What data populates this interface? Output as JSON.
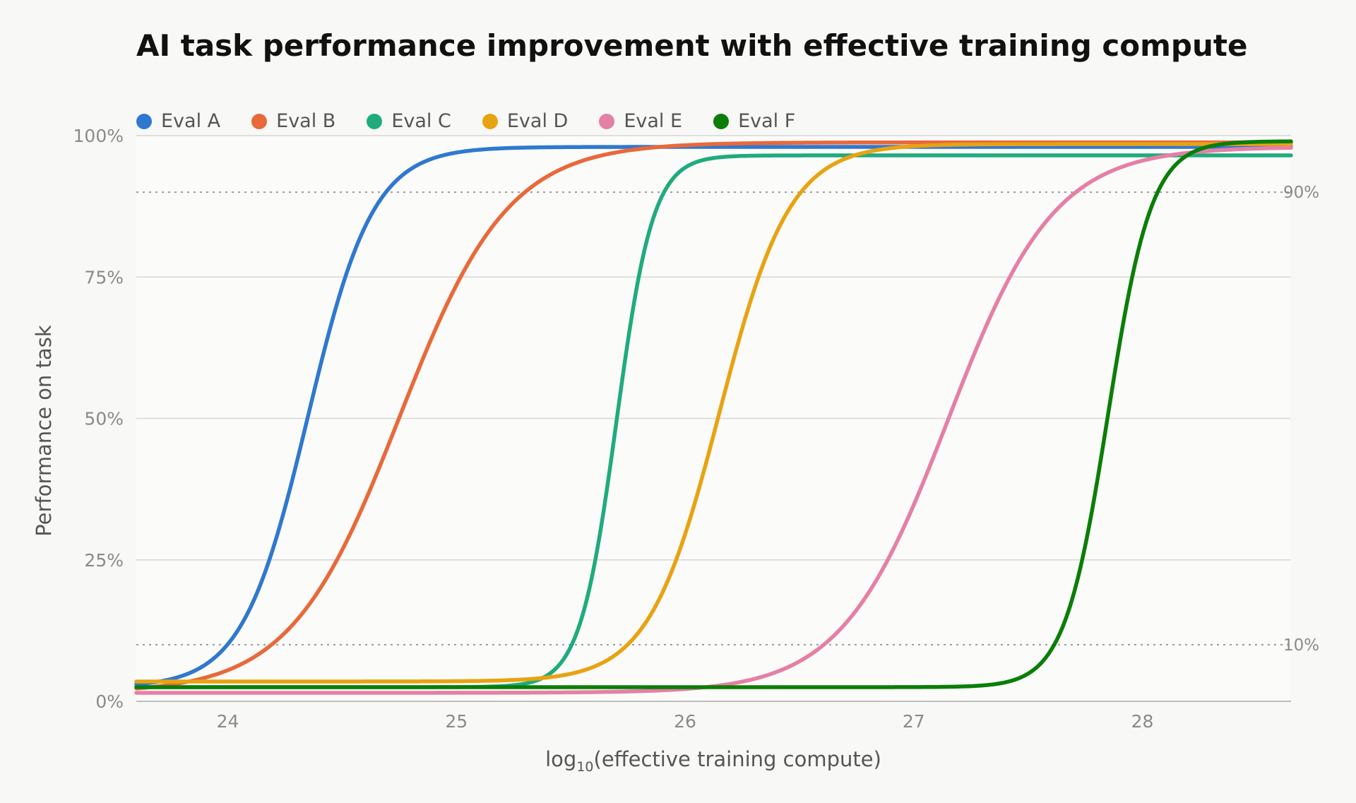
{
  "chart_data": {
    "type": "line",
    "title": "AI task performance improvement with effective training compute",
    "xlabel_prefix": "log",
    "xlabel_sub": "10",
    "xlabel_rest": "(effective training compute)",
    "ylabel": "Performance on task",
    "xlim": [
      23.6,
      28.65
    ],
    "ylim": [
      0,
      100
    ],
    "x_ticks": [
      24,
      25,
      26,
      27,
      28
    ],
    "x_tick_labels": [
      "24",
      "25",
      "26",
      "27",
      "28"
    ],
    "y_ticks": [
      0,
      25,
      50,
      75,
      100
    ],
    "y_tick_labels": [
      "0%",
      "25%",
      "50%",
      "75%",
      "100%"
    ],
    "reference_lines": [
      {
        "y": 90,
        "label": "90%"
      },
      {
        "y": 10,
        "label": "10%"
      }
    ],
    "grid": true,
    "legend_position": "top-left",
    "series": [
      {
        "name": "Eval A",
        "color": "#2f78d1",
        "floor": 2.5,
        "ceiling": 98,
        "midpoint": 24.35,
        "steepness": 7.0
      },
      {
        "name": "Eval B",
        "color": "#e8693a",
        "floor": 1.5,
        "ceiling": 98.8,
        "midpoint": 24.75,
        "steepness": 4.2
      },
      {
        "name": "Eval C",
        "color": "#1fab7e",
        "floor": 2.5,
        "ceiling": 96.5,
        "midpoint": 25.7,
        "steepness": 12.5
      },
      {
        "name": "Eval D",
        "color": "#e8a312",
        "floor": 3.5,
        "ceiling": 98.5,
        "midpoint": 26.15,
        "steepness": 6.5
      },
      {
        "name": "Eval E",
        "color": "#e57fa6",
        "floor": 1.5,
        "ceiling": 98,
        "midpoint": 27.15,
        "steepness": 4.3
      },
      {
        "name": "Eval F",
        "color": "#0a7e07",
        "floor": 2.5,
        "ceiling": 99,
        "midpoint": 27.85,
        "steepness": 10.5
      }
    ]
  }
}
